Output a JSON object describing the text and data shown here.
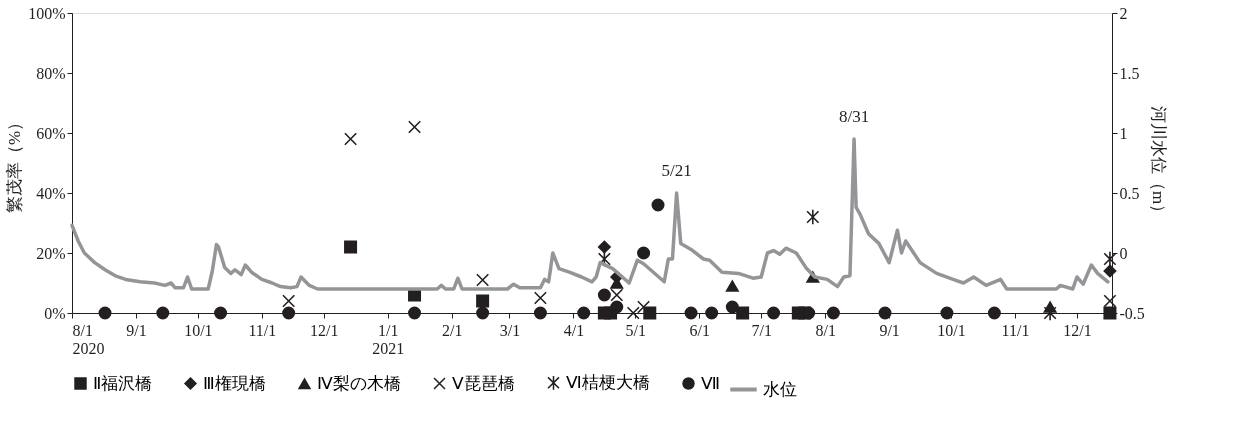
{
  "chart_data": {
    "type": "scatter",
    "ylabel": "繁茂率（%）",
    "y2label": "河川水位（m）",
    "legend": "bottom",
    "xlim": [
      "2020-08-01",
      "2021-12-18"
    ],
    "xticks": [
      {
        "value": "2020-08-01",
        "label": "8/1\n2020"
      },
      {
        "value": "2020-09-01",
        "label": "9/1"
      },
      {
        "value": "2020-10-01",
        "label": "10/1"
      },
      {
        "value": "2020-11-01",
        "label": "11/1"
      },
      {
        "value": "2020-12-01",
        "label": "12/1"
      },
      {
        "value": "2021-01-01",
        "label": "1/1\n2021"
      },
      {
        "value": "2021-02-01",
        "label": "2/1"
      },
      {
        "value": "2021-03-01",
        "label": "3/1"
      },
      {
        "value": "2021-04-01",
        "label": "4/1"
      },
      {
        "value": "2021-05-01",
        "label": "5/1"
      },
      {
        "value": "2021-06-01",
        "label": "6/1"
      },
      {
        "value": "2021-07-01",
        "label": "7/1"
      },
      {
        "value": "2021-08-01",
        "label": "8/1"
      },
      {
        "value": "2021-09-01",
        "label": "9/1"
      },
      {
        "value": "2021-10-01",
        "label": "10/1"
      },
      {
        "value": "2021-11-01",
        "label": "11/1"
      },
      {
        "value": "2021-12-01",
        "label": "12/1"
      }
    ],
    "ylim": [
      0,
      100
    ],
    "yticks": [
      {
        "value": 0,
        "label": "0%"
      },
      {
        "value": 20,
        "label": "20%"
      },
      {
        "value": 40,
        "label": "40%"
      },
      {
        "value": 60,
        "label": "60%"
      },
      {
        "value": 80,
        "label": "80%"
      },
      {
        "value": 100,
        "label": "100%"
      }
    ],
    "y2lim": [
      -0.5,
      2
    ],
    "y2ticks": [
      -0.5,
      0,
      0.5,
      1,
      1.5,
      2
    ],
    "annotations": [
      {
        "text": "5/21",
        "x": "2021-05-21",
        "y": 40
      },
      {
        "text": "8/31",
        "x": "2021-08-15",
        "y": 58
      }
    ],
    "series": [
      {
        "name": "Ⅱ福沢橋",
        "color": "#231f20",
        "marker": "square",
        "x": [
          "2020-12-14",
          "2021-01-14",
          "2021-02-16",
          "2021-04-16",
          "2021-04-19",
          "2021-05-08",
          "2021-06-22",
          "2021-07-19",
          "2021-07-22",
          "2021-12-17"
        ],
        "values": [
          22,
          6,
          4,
          0,
          0,
          0,
          0,
          0,
          0,
          0
        ]
      },
      {
        "name": "Ⅲ権現橋",
        "color": "#231f20",
        "marker": "diamond",
        "x": [
          "2021-04-16",
          "2021-04-22",
          "2021-12-17"
        ],
        "values": [
          22,
          12,
          14
        ]
      },
      {
        "name": "Ⅳ梨の木橋",
        "color": "#231f20",
        "marker": "triangle",
        "x": [
          "2021-04-22",
          "2021-06-17",
          "2021-07-26",
          "2021-11-18"
        ],
        "values": [
          10,
          9,
          12,
          2
        ]
      },
      {
        "name": "Ⅴ琵琶橋",
        "color": "#231f20",
        "marker": "cross",
        "x": [
          "2020-11-14",
          "2020-12-14",
          "2021-01-14",
          "2021-02-16",
          "2021-03-16",
          "2021-04-22",
          "2021-04-30",
          "2021-05-05",
          "2021-12-17"
        ],
        "values": [
          4,
          58,
          62,
          11,
          5,
          6,
          0,
          2,
          4
        ]
      },
      {
        "name": "Ⅵ桔梗大橋",
        "color": "#231f20",
        "marker": "cross",
        "x": [
          "2021-04-16",
          "2021-07-26",
          "2021-11-18",
          "2021-12-17"
        ],
        "values": [
          18,
          32,
          0,
          18
        ]
      },
      {
        "name": "Ⅶ",
        "color": "#231f20",
        "marker": "circle",
        "x": [
          "2020-08-17",
          "2020-09-14",
          "2020-10-12",
          "2020-11-14",
          "2021-01-14",
          "2021-02-16",
          "2021-03-16",
          "2021-04-06",
          "2021-04-16",
          "2021-04-22",
          "2021-05-05",
          "2021-05-12",
          "2021-05-28",
          "2021-06-07",
          "2021-06-17",
          "2021-07-07",
          "2021-07-24",
          "2021-08-05",
          "2021-08-30",
          "2021-09-29",
          "2021-10-22"
        ],
        "values": [
          0,
          0,
          0,
          0,
          0,
          0,
          0,
          0,
          6,
          2,
          20,
          36,
          0,
          0,
          2,
          0,
          0,
          0,
          0,
          0,
          0
        ]
      },
      {
        "name": "水位",
        "type": "line",
        "axis": "y2",
        "color": "#939598",
        "x": [
          "2020-08-01",
          "2020-08-04",
          "2020-08-07",
          "2020-08-12",
          "2020-08-17",
          "2020-08-22",
          "2020-08-27",
          "2020-09-03",
          "2020-09-10",
          "2020-09-15",
          "2020-09-18",
          "2020-09-20",
          "2020-09-24",
          "2020-09-26",
          "2020-09-28",
          "2020-10-06",
          "2020-10-08",
          "2020-10-10",
          "2020-10-11",
          "2020-10-14",
          "2020-10-17",
          "2020-10-19",
          "2020-10-22",
          "2020-10-24",
          "2020-10-27",
          "2020-11-01",
          "2020-11-06",
          "2020-11-10",
          "2020-11-15",
          "2020-11-18",
          "2020-11-20",
          "2020-11-24",
          "2020-11-28",
          "2021-01-25",
          "2021-01-27",
          "2021-01-29",
          "2021-02-02",
          "2021-02-04",
          "2021-02-06",
          "2021-02-28",
          "2021-03-03",
          "2021-03-06",
          "2021-03-16",
          "2021-03-18",
          "2021-03-20",
          "2021-03-22",
          "2021-03-25",
          "2021-03-30",
          "2021-04-05",
          "2021-04-10",
          "2021-04-12",
          "2021-04-14",
          "2021-04-20",
          "2021-04-28",
          "2021-05-02",
          "2021-05-05",
          "2021-05-15",
          "2021-05-17",
          "2021-05-19",
          "2021-05-21",
          "2021-05-23",
          "2021-05-28",
          "2021-06-03",
          "2021-06-06",
          "2021-06-12",
          "2021-06-20",
          "2021-06-27",
          "2021-07-01",
          "2021-07-04",
          "2021-07-07",
          "2021-07-10",
          "2021-07-13",
          "2021-07-18",
          "2021-07-23",
          "2021-07-27",
          "2021-08-02",
          "2021-08-07",
          "2021-08-10",
          "2021-08-13",
          "2021-08-15",
          "2021-08-16",
          "2021-08-18",
          "2021-08-22",
          "2021-08-27",
          "2021-09-01",
          "2021-09-05",
          "2021-09-07",
          "2021-09-09",
          "2021-09-16",
          "2021-09-24",
          "2021-10-02",
          "2021-10-07",
          "2021-10-12",
          "2021-10-18",
          "2021-10-25",
          "2021-10-28",
          "2021-11-21",
          "2021-11-23",
          "2021-11-29",
          "2021-12-01",
          "2021-12-04",
          "2021-12-08",
          "2021-12-11",
          "2021-12-16"
        ],
        "values": [
          0.23,
          0.1,
          0.0,
          -0.08,
          -0.14,
          -0.19,
          -0.22,
          -0.24,
          -0.25,
          -0.27,
          -0.25,
          -0.29,
          -0.29,
          -0.2,
          -0.3,
          -0.3,
          -0.15,
          0.07,
          0.05,
          -0.12,
          -0.17,
          -0.14,
          -0.18,
          -0.1,
          -0.16,
          -0.22,
          -0.25,
          -0.28,
          -0.29,
          -0.28,
          -0.2,
          -0.27,
          -0.3,
          -0.3,
          -0.27,
          -0.3,
          -0.3,
          -0.21,
          -0.3,
          -0.3,
          -0.26,
          -0.29,
          -0.29,
          -0.22,
          -0.24,
          0.0,
          -0.13,
          -0.16,
          -0.2,
          -0.24,
          -0.2,
          -0.08,
          -0.13,
          -0.25,
          -0.06,
          -0.09,
          -0.24,
          -0.05,
          -0.05,
          0.5,
          0.08,
          0.03,
          -0.05,
          -0.06,
          -0.16,
          -0.17,
          -0.21,
          -0.2,
          0.0,
          0.02,
          -0.01,
          0.04,
          0.0,
          -0.13,
          -0.2,
          -0.22,
          -0.28,
          -0.2,
          -0.19,
          0.95,
          0.38,
          0.32,
          0.16,
          0.08,
          -0.08,
          0.19,
          0.0,
          0.1,
          -0.08,
          -0.17,
          -0.22,
          -0.25,
          -0.2,
          -0.27,
          -0.22,
          -0.3,
          -0.3,
          -0.27,
          -0.3,
          -0.2,
          -0.26,
          -0.1,
          -0.17,
          -0.24
        ]
      }
    ]
  }
}
